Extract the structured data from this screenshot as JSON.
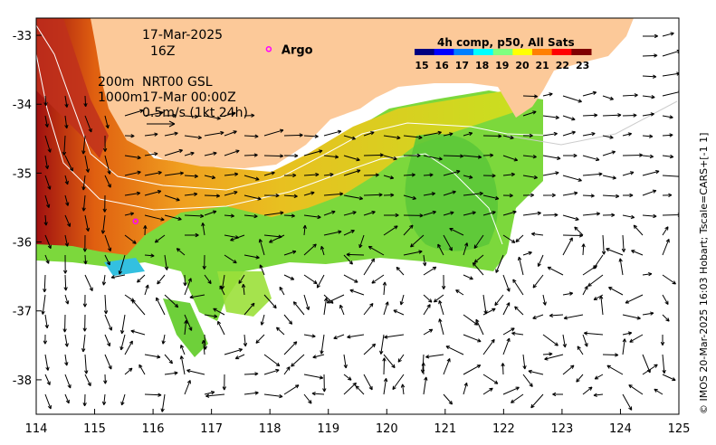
{
  "map": {
    "date": "17-Mar-2025",
    "hour": "16Z",
    "depth_labels": [
      "200m",
      "1000m"
    ],
    "current_source": "NRT00 GSL",
    "current_time": "17-Mar 00:00Z",
    "scale_label": "0.5m/s (1kt 24h)",
    "argo_label": "Argo",
    "colorbar_title": "4h comp, p50, All Sats",
    "colorbar_ticks": [
      "15",
      "16",
      "17",
      "18",
      "19",
      "20",
      "21",
      "22",
      "23"
    ],
    "colorbar_colors": [
      "#00007f",
      "#0000ff",
      "#007fff",
      "#00ffff",
      "#7fff7f",
      "#ffff00",
      "#ff7f00",
      "#ff0000",
      "#7f0000"
    ],
    "credit": "© IMOS 20-Mar-2025 16:03 Hobart; Tscale=CARS+[-1 1]",
    "lon_ticks": [
      "114",
      "115",
      "116",
      "117",
      "118",
      "119",
      "120",
      "121",
      "122",
      "123",
      "124",
      "125"
    ],
    "lat_ticks": [
      "-33",
      "-34",
      "-35",
      "-36",
      "-37",
      "-38"
    ],
    "land_color": "#fcc999",
    "argo_color": "#ff00ff",
    "argo_position": {
      "lon": 115.7,
      "lat": -35.7
    },
    "argo_legend_position": {
      "lon": 117.98,
      "lat": -33.2
    }
  }
}
